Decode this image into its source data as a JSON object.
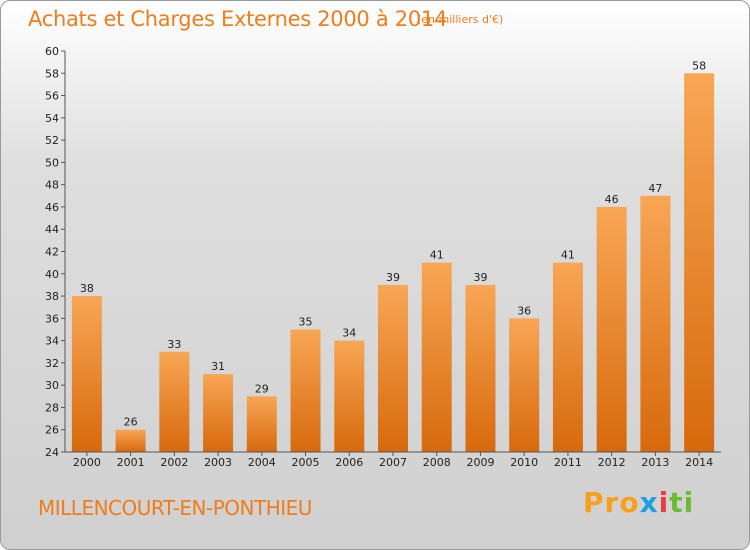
{
  "title": "Achats et Charges Externes 2000 à 2014",
  "subtitle": "(en milliers d'€)",
  "commune": "MILLENCOURT-EN-PONTHIEU",
  "brand": {
    "p1": "Pro",
    "p2": "x",
    "p3": "i",
    "p4": "ti"
  },
  "colors": {
    "bar_light": "#f6a14e",
    "bar_dark": "#d96d0f",
    "title": "#f07c1a"
  },
  "chart_data": {
    "type": "bar",
    "title": "Achats et Charges Externes 2000 à 2014",
    "subtitle": "(en milliers d'€)",
    "categories": [
      "2000",
      "2001",
      "2002",
      "2003",
      "2004",
      "2005",
      "2006",
      "2007",
      "2008",
      "2009",
      "2010",
      "2011",
      "2012",
      "2013",
      "2014"
    ],
    "values": [
      38,
      26,
      33,
      31,
      29,
      35,
      34,
      39,
      41,
      39,
      36,
      41,
      46,
      47,
      58
    ],
    "ylim": [
      24,
      60
    ],
    "ystep": 2,
    "grid": false,
    "data_labels": true
  }
}
